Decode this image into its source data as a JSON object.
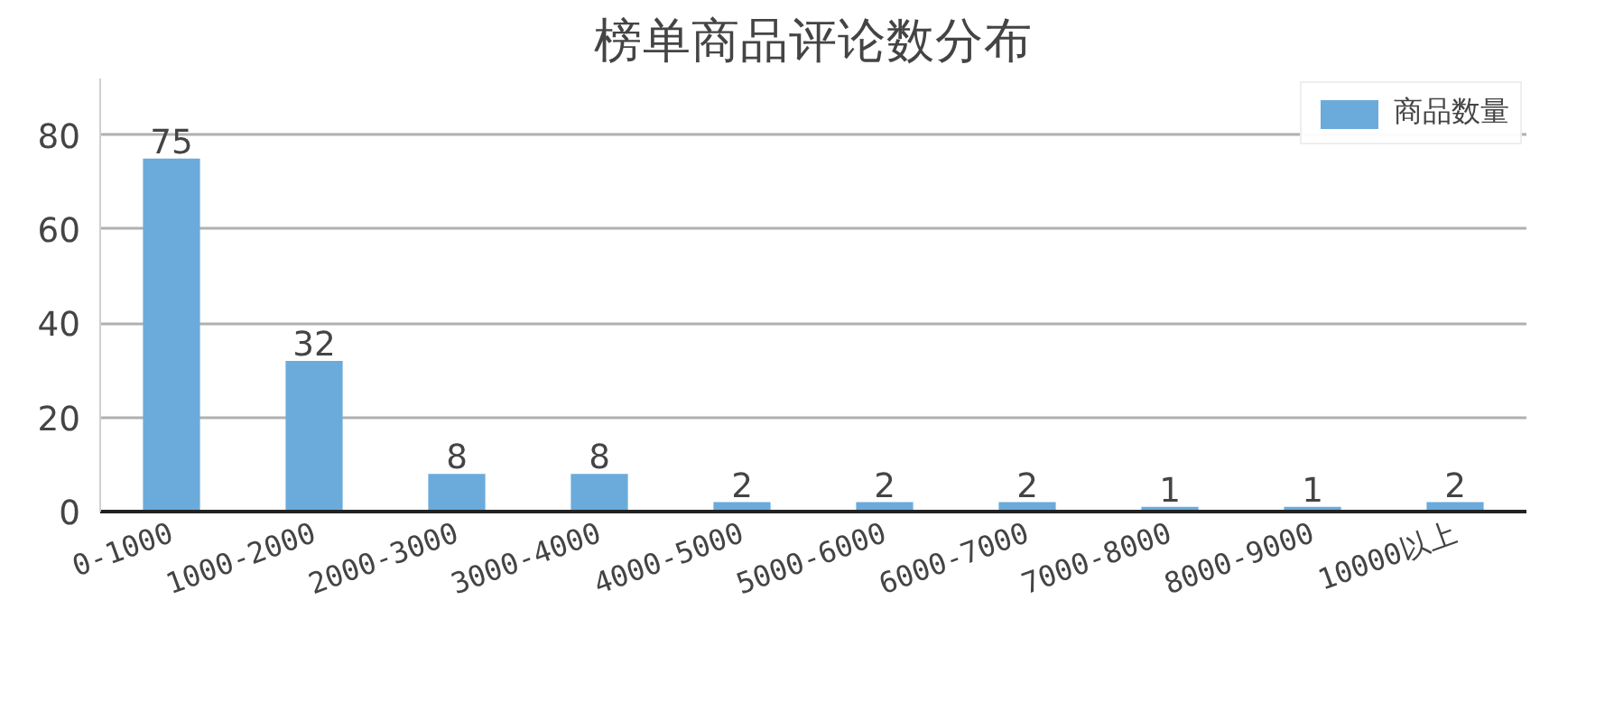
{
  "chart_data": {
    "type": "bar",
    "title": "榜单商品评论数分布",
    "categories": [
      "0-1000",
      "1000-2000",
      "2000-3000",
      "3000-4000",
      "4000-5000",
      "5000-6000",
      "6000-7000",
      "7000-8000",
      "8000-9000",
      "10000以上"
    ],
    "series": [
      {
        "name": "商品数量",
        "color": "#6aabdc",
        "values": [
          75,
          32,
          8,
          8,
          2,
          2,
          2,
          1,
          1,
          2
        ]
      }
    ],
    "ylim": [
      0,
      92
    ],
    "yticks": [
      0,
      20,
      40,
      60,
      80
    ],
    "grid": "y",
    "legend": "top right",
    "data_labels": true
  }
}
